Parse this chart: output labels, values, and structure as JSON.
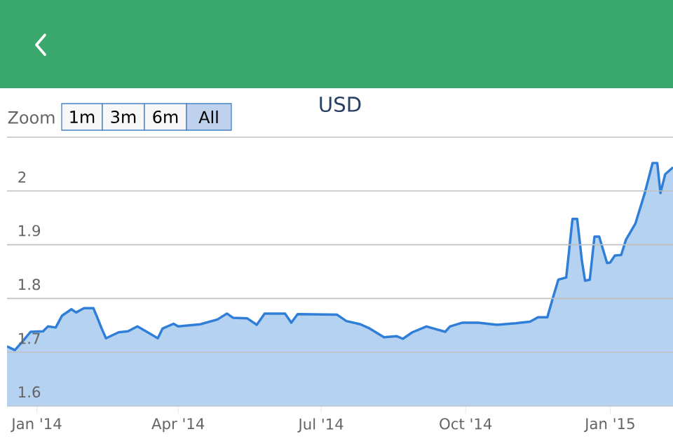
{
  "chart_data": {
    "type": "area",
    "title": "USD",
    "annotations": [
      "Zoom",
      "1m",
      "3m",
      "6m",
      "All"
    ],
    "x": [
      "2013-12-13",
      "2013-12-18",
      "2013-12-22",
      "2013-12-28",
      "2014-01-05",
      "2014-01-08",
      "2014-01-13",
      "2014-01-17",
      "2014-01-23",
      "2014-01-26",
      "2014-01-31",
      "2014-02-06",
      "2014-02-09",
      "2014-02-11",
      "2014-02-14",
      "2014-02-22",
      "2014-02-28",
      "2014-03-06",
      "2014-03-12",
      "2014-03-19",
      "2014-03-22",
      "2014-03-29",
      "2014-04-01",
      "2014-04-15",
      "2014-04-26",
      "2014-05-02",
      "2014-05-06",
      "2014-05-15",
      "2014-05-21",
      "2014-05-26",
      "2014-06-08",
      "2014-06-12",
      "2014-06-16",
      "2014-07-11",
      "2014-07-17",
      "2014-07-26",
      "2014-08-01",
      "2014-08-10",
      "2014-08-18",
      "2014-08-22",
      "2014-08-28",
      "2014-09-06",
      "2014-09-18",
      "2014-09-21",
      "2014-09-29",
      "2014-10-09",
      "2014-10-21",
      "2014-11-02",
      "2014-11-11",
      "2014-11-16",
      "2014-11-22",
      "2014-11-25",
      "2014-11-29",
      "2014-12-04",
      "2014-12-05",
      "2014-12-08",
      "2014-12-11",
      "2014-12-14",
      "2014-12-16",
      "2014-12-19",
      "2014-12-22",
      "2014-12-25",
      "2014-12-30",
      "2015-01-01",
      "2015-01-04",
      "2015-01-08",
      "2015-01-11",
      "2015-01-17",
      "2015-01-23",
      "2015-01-28",
      "2015-01-31",
      "2015-02-02",
      "2015-02-05",
      "2015-02-10"
    ],
    "values": [
      1.711,
      1.704,
      1.717,
      1.738,
      1.739,
      1.748,
      1.746,
      1.768,
      1.78,
      1.774,
      1.782,
      1.782,
      1.761,
      1.746,
      1.726,
      1.737,
      1.739,
      1.748,
      1.738,
      1.726,
      1.744,
      1.753,
      1.748,
      1.752,
      1.761,
      1.772,
      1.764,
      1.763,
      1.751,
      1.772,
      1.772,
      1.755,
      1.771,
      1.77,
      1.758,
      1.752,
      1.744,
      1.728,
      1.73,
      1.725,
      1.737,
      1.748,
      1.738,
      1.748,
      1.755,
      1.755,
      1.751,
      1.754,
      1.757,
      1.765,
      1.765,
      1.796,
      1.835,
      1.839,
      1.866,
      1.948,
      1.948,
      1.87,
      1.833,
      1.835,
      1.915,
      1.915,
      1.866,
      1.867,
      1.88,
      1.881,
      1.909,
      1.939,
      1.996,
      2.052,
      2.052,
      1.996,
      2.031,
      2.044
    ],
    "color": "#2f7ed8",
    "xlim": [
      "2013-12-13",
      "2015-02-10"
    ],
    "xticks": [
      {
        "value": "2014-01-01",
        "label": "Jan '14"
      },
      {
        "value": "2014-04-01",
        "label": "Apr '14"
      },
      {
        "value": "2014-07-01",
        "label": "Jul '14"
      },
      {
        "value": "2014-10-01",
        "label": "Oct '14"
      },
      {
        "value": "2015-01-01",
        "label": "Jan '15"
      }
    ],
    "ylim": [
      1.6,
      2.1
    ],
    "yticks": [
      1.6,
      1.7,
      1.8,
      1.9,
      2,
      {
        "value": 2.1,
        "label": null
      }
    ],
    "grid": "y",
    "marker": "none",
    "line_style": "solid"
  }
}
